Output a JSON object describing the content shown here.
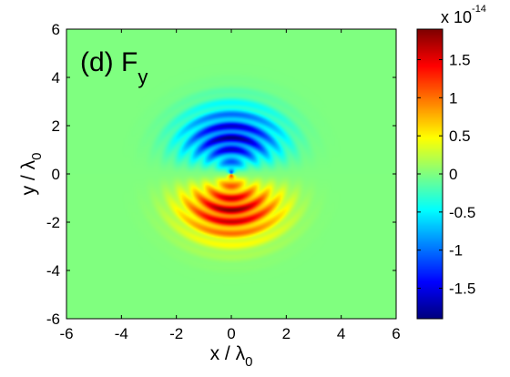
{
  "chart_data": {
    "type": "heatmap",
    "panel_label": "(d) F",
    "panel_label_sub": "y",
    "x_axis": {
      "label": "x / λ",
      "label_sub": "0",
      "range": [
        -6,
        6
      ],
      "ticks": [
        -6,
        -4,
        -2,
        0,
        2,
        4,
        6
      ]
    },
    "y_axis": {
      "label": "y / λ",
      "label_sub": "0",
      "range": [
        -6,
        6
      ],
      "ticks": [
        -6,
        -4,
        -2,
        0,
        2,
        4,
        6
      ]
    },
    "colorbar": {
      "multiplier_text": "x 10",
      "multiplier_exponent": "-14",
      "range": [
        -1.9,
        1.9
      ],
      "ticks": [
        -1.5,
        -1,
        -0.5,
        0,
        0.5,
        1,
        1.5
      ],
      "tick_labels": [
        "-1.5",
        "-1",
        "-0.5",
        "0",
        "0.5",
        "1",
        "1.5"
      ],
      "colormap": "jet"
    },
    "field_description": {
      "background_value": 0,
      "negative_lobe": {
        "center": [
          0,
          1.2
        ],
        "peak_value": -1.9
      },
      "positive_lobe": {
        "center": [
          0,
          -1.2
        ],
        "peak_value": 1.9
      },
      "fringe_wavelength": 0.5,
      "grid": false
    }
  }
}
